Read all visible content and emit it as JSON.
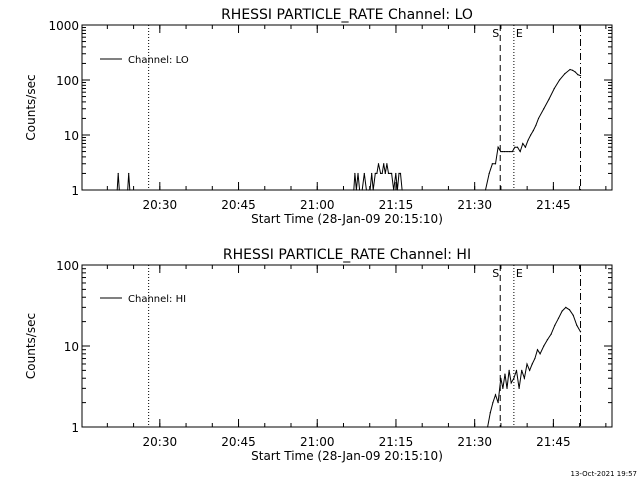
{
  "footer": {
    "timestamp": "13-Oct-2021 19:57"
  },
  "chart_data": [
    {
      "type": "line",
      "title": "RHESSI PARTICLE_RATE Channel: LO",
      "xlabel": "Start Time (28-Jan-09 20:15:10)",
      "ylabel": "Counts/sec",
      "yscale": "log",
      "ylim": [
        1,
        1000
      ],
      "ytick_values": [
        1,
        10,
        100,
        1000
      ],
      "ytick_labels": [
        "1",
        "10",
        "100",
        "1000"
      ],
      "xlim_minutes_after_20_15_10": [
        0,
        101
      ],
      "xticks": [
        "20:30",
        "20:45",
        "21:00",
        "21:15",
        "21:30",
        "21:45"
      ],
      "xtick_minutes_after_20_15_10": [
        14.83,
        29.83,
        44.83,
        59.83,
        74.83,
        89.83
      ],
      "legend": {
        "position": "top-left",
        "entries": [
          "Channel: LO"
        ]
      },
      "markers": [
        {
          "label": "",
          "style": "dotted",
          "x": 12.7
        },
        {
          "label": "S",
          "style": "dashed",
          "x": 79.7
        },
        {
          "label": "E",
          "style": "dotted",
          "x": 82.3
        },
        {
          "label": "",
          "style": "dashdot",
          "x": 95.0
        }
      ],
      "series": [
        {
          "name": "Channel: LO",
          "x": [
            6.7,
            6.9,
            7.1,
            8.7,
            8.9,
            9.1,
            51.8,
            52.0,
            52.3,
            52.6,
            52.9,
            53.4,
            53.8,
            54.2,
            54.6,
            54.9,
            55.2,
            55.5,
            55.9,
            56.2,
            56.5,
            56.9,
            57.2,
            57.5,
            57.8,
            58.1,
            58.4,
            58.7,
            59.0,
            59.4,
            59.8,
            60.1,
            60.4,
            60.7,
            61.0,
            76.9,
            77.6,
            78.2,
            78.8,
            79.3,
            79.8,
            80.1,
            80.5,
            81.0,
            81.5,
            82.0,
            82.5,
            83.0,
            83.5,
            84.0,
            84.5,
            85.0,
            85.5,
            86.0,
            86.5,
            87.0,
            88.0,
            89.0,
            90.0,
            91.0,
            92.0,
            93.0,
            93.5,
            94.0,
            94.5,
            95.0
          ],
          "y": [
            1,
            2,
            1,
            1,
            2,
            1,
            1,
            2,
            1,
            2,
            1,
            1,
            2,
            1,
            1,
            1,
            2,
            1,
            2,
            2,
            3,
            2,
            2,
            3,
            2,
            3,
            2,
            2,
            2,
            1,
            2,
            1,
            2,
            2,
            1,
            1,
            2,
            3,
            3,
            6,
            5,
            5,
            5,
            5,
            5,
            5,
            6,
            6,
            5,
            7,
            6,
            8,
            10,
            12,
            15,
            20,
            30,
            45,
            70,
            100,
            130,
            155,
            150,
            140,
            125,
            120
          ]
        }
      ]
    },
    {
      "type": "line",
      "title": "RHESSI PARTICLE_RATE Channel: HI",
      "xlabel": "Start Time (28-Jan-09 20:15:10)",
      "ylabel": "Counts/sec",
      "yscale": "log",
      "ylim": [
        1,
        100
      ],
      "ytick_values": [
        1,
        10,
        100
      ],
      "ytick_labels": [
        "1",
        "10",
        "100"
      ],
      "xlim_minutes_after_20_15_10": [
        0,
        101
      ],
      "xticks": [
        "20:30",
        "20:45",
        "21:00",
        "21:15",
        "21:30",
        "21:45"
      ],
      "xtick_minutes_after_20_15_10": [
        14.83,
        29.83,
        44.83,
        59.83,
        74.83,
        89.83
      ],
      "legend": {
        "position": "top-left",
        "entries": [
          "Channel: HI"
        ]
      },
      "markers": [
        {
          "label": "",
          "style": "dotted",
          "x": 12.7
        },
        {
          "label": "S",
          "style": "dashed",
          "x": 79.7
        },
        {
          "label": "E",
          "style": "dotted",
          "x": 82.3
        },
        {
          "label": "",
          "style": "dashdot",
          "x": 95.0
        }
      ],
      "series": [
        {
          "name": "Channel: HI",
          "x": [
            77.3,
            77.8,
            78.3,
            78.8,
            79.3,
            79.8,
            80.2,
            80.6,
            81.0,
            81.4,
            81.8,
            82.3,
            82.8,
            83.3,
            83.8,
            84.3,
            84.8,
            85.3,
            85.8,
            86.3,
            86.8,
            87.3,
            88.0,
            88.7,
            89.4,
            90.1,
            90.8,
            91.5,
            92.2,
            92.9,
            93.6,
            94.3,
            95.0
          ],
          "y": [
            1,
            1.5,
            2,
            2.5,
            2,
            4,
            3,
            4.5,
            3,
            5,
            3.5,
            4,
            5,
            3,
            5,
            4,
            6,
            5,
            6,
            7,
            9,
            8,
            10,
            12,
            14,
            18,
            22,
            27,
            30,
            28,
            24,
            18,
            15
          ]
        }
      ]
    }
  ]
}
